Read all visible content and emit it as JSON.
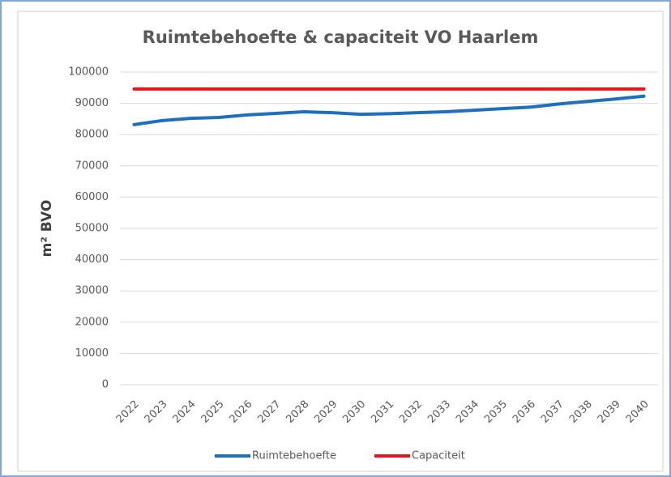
{
  "chart_data": {
    "type": "line",
    "title": "Ruimtebehoefte & capaciteit VO Haarlem",
    "y_label": "m² BVO",
    "categories": [
      "2022",
      "2023",
      "2024",
      "2025",
      "2026",
      "2027",
      "2028",
      "2029",
      "2030",
      "2031",
      "2032",
      "2033",
      "2034",
      "2035",
      "2036",
      "2037",
      "2038",
      "2039",
      "2040"
    ],
    "series": [
      {
        "name": "Ruimtebehoefte",
        "color": "#1f6fbf",
        "values": [
          83200,
          84500,
          85200,
          85500,
          86300,
          86800,
          87300,
          87000,
          86500,
          86700,
          87000,
          87300,
          87800,
          88300,
          88800,
          89800,
          90600,
          91400,
          92300
        ]
      },
      {
        "name": "Capaciteit",
        "color": "#e8141b",
        "values": [
          94600,
          94600,
          94600,
          94600,
          94600,
          94600,
          94600,
          94600,
          94600,
          94600,
          94600,
          94600,
          94600,
          94600,
          94600,
          94600,
          94600,
          94600,
          94600
        ]
      }
    ],
    "ylim": [
      0,
      100000
    ],
    "yticks": [
      0,
      10000,
      20000,
      30000,
      40000,
      50000,
      60000,
      70000,
      80000,
      90000,
      100000
    ],
    "grid": true,
    "legend": "bottom"
  }
}
